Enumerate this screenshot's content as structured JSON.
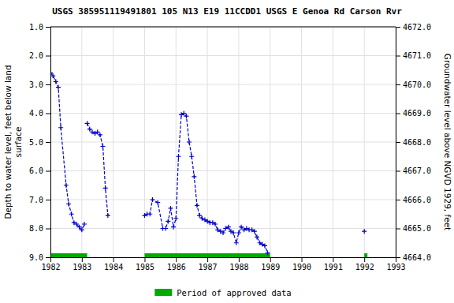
{
  "chart_data": {
    "type": "line",
    "title": "USGS 385951119491801 105  N13 E19 11CCDD1    USGS E Genoa Rd Carson Rvr",
    "y_label": "Depth to water level, feet below land\nsurface",
    "y2_label": "Groundwater level above NGVD 1929, feet",
    "xlim": [
      1982.0,
      1993.0
    ],
    "xticks": [
      1982,
      1983,
      1984,
      1985,
      1986,
      1987,
      1988,
      1989,
      1990,
      1991,
      1992,
      1993
    ],
    "ylim": [
      9.0,
      1.0
    ],
    "yticks": [
      {
        "value": 1.0,
        "label": "1.0"
      },
      {
        "value": 2.0,
        "label": "2.0"
      },
      {
        "value": 3.0,
        "label": "3.0"
      },
      {
        "value": 4.0,
        "label": "4.0"
      },
      {
        "value": 5.0,
        "label": "5.0"
      },
      {
        "value": 6.0,
        "label": "6.0"
      },
      {
        "value": 7.0,
        "label": "7.0"
      },
      {
        "value": 8.0,
        "label": "8.0"
      },
      {
        "value": 9.0,
        "label": "9.0"
      }
    ],
    "y2lim": [
      4664.0,
      4672.0
    ],
    "y2ticks": [
      {
        "value": 4664.0,
        "label": "4664.0"
      },
      {
        "value": 4665.0,
        "label": "4665.0"
      },
      {
        "value": 4666.0,
        "label": "4666.0"
      },
      {
        "value": 4667.0,
        "label": "4667.0"
      },
      {
        "value": 4668.0,
        "label": "4668.0"
      },
      {
        "value": 4669.0,
        "label": "4669.0"
      },
      {
        "value": 4670.0,
        "label": "4670.0"
      },
      {
        "value": 4671.0,
        "label": "4671.0"
      },
      {
        "value": 4672.0,
        "label": "4672.0"
      }
    ],
    "grid": true,
    "legend": "bottom",
    "x": [
      1982.0,
      1982.08,
      1982.17,
      1982.25,
      1982.33,
      1982.5,
      1982.58,
      1982.67,
      1982.75,
      1982.83,
      1982.92,
      1983.0,
      1983.08,
      null,
      1983.17,
      1983.25,
      1983.33,
      1983.42,
      1983.5,
      1983.58,
      1983.67,
      1983.75,
      1983.83,
      null,
      1985.0,
      1985.08,
      1985.17,
      1985.25,
      1985.42,
      1985.58,
      1985.67,
      1985.75,
      1985.83,
      1985.92,
      1986.0,
      1986.08,
      1986.17,
      1986.25,
      1986.33,
      1986.42,
      1986.5,
      1986.58,
      1986.67,
      1986.75,
      1986.83,
      1986.92,
      1987.0,
      1987.08,
      1987.17,
      1987.25,
      1987.33,
      1987.42,
      1987.5,
      1987.58,
      1987.67,
      1987.75,
      1987.83,
      1987.92,
      1988.0,
      1988.08,
      1988.17,
      1988.25,
      1988.33,
      1988.42,
      1988.5,
      1988.58,
      1988.67,
      1988.75,
      1988.83,
      1988.92,
      null,
      1992.0
    ],
    "series": [
      {
        "color": "#0000cc",
        "line_style": "dashed",
        "marker": "plus",
        "values": [
          2.6,
          2.7,
          2.9,
          3.1,
          4.5,
          6.5,
          7.15,
          7.5,
          7.8,
          7.85,
          7.95,
          8.05,
          7.85,
          null,
          4.35,
          4.55,
          4.65,
          4.7,
          4.65,
          4.75,
          5.15,
          6.6,
          7.55,
          null,
          7.55,
          7.5,
          7.5,
          7.0,
          7.1,
          8.0,
          8.0,
          7.75,
          7.3,
          7.95,
          7.65,
          5.5,
          4.05,
          4.0,
          4.1,
          5.0,
          5.5,
          6.2,
          7.2,
          7.55,
          7.65,
          7.7,
          7.75,
          7.8,
          7.8,
          7.85,
          8.05,
          8.1,
          8.15,
          8.0,
          7.95,
          8.1,
          8.15,
          8.5,
          8.15,
          7.95,
          8.05,
          8.0,
          8.05,
          8.05,
          8.1,
          8.3,
          8.5,
          8.55,
          8.6,
          8.85,
          null,
          8.1
        ]
      }
    ],
    "periods": {
      "name": "Period of approved data",
      "color": "#00aa00",
      "ranges": [
        [
          1982.0,
          1983.17
        ],
        [
          1985.0,
          1989.0
        ],
        [
          1992.0,
          1992.1
        ]
      ]
    }
  }
}
